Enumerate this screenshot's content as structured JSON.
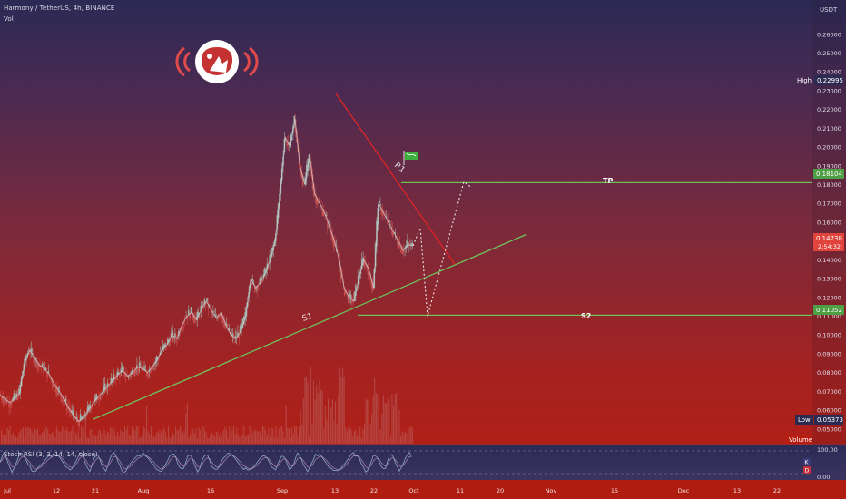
{
  "header": {
    "symbol_line": "Harmony / TetherUS, 4h, BINANCE",
    "vol_label": "Vol",
    "currency": "USDT"
  },
  "colors": {
    "bg_top": "#2b2a55",
    "bg_bottom": "#b81e10",
    "green_line": "#6fbf5a",
    "red_line": "#e02424",
    "candle_up": "#9fb0a8",
    "candle_down": "#c45050"
  },
  "chart_data": {
    "type": "line",
    "title": "",
    "y_axis": {
      "ticks": [
        "0.26000",
        "0.25000",
        "0.24000",
        "0.23000",
        "0.22000",
        "0.21000",
        "0.20000",
        "0.19000",
        "0.18000",
        "0.17000",
        "0.16000",
        "0.15000",
        "0.14000",
        "0.13000",
        "0.12000",
        "0.11000",
        "0.10000",
        "0.09000",
        "0.08000",
        "0.07000",
        "0.06000",
        "0.05000"
      ],
      "ylim": [
        0.0465,
        0.2715
      ]
    },
    "x_axis": {
      "tick_labels": [
        "Jul",
        "12",
        "21",
        "Aug",
        "16",
        "Sep",
        "13",
        "22",
        "Oct",
        "11",
        "20",
        "Nov",
        "15",
        "Dec",
        "13",
        "22"
      ]
    },
    "price_labels": {
      "high": {
        "label": "High",
        "value": "0.22995"
      },
      "tp": {
        "value": "0.18104"
      },
      "current": {
        "value": "0.14738",
        "countdown": "2:54:32"
      },
      "s2": {
        "value": "0.11052"
      },
      "low": {
        "label": "Low",
        "value": "0.05373"
      }
    },
    "levels": [
      {
        "name": "TP",
        "value": 0.18104
      },
      {
        "name": "S2",
        "value": 0.11052
      }
    ],
    "annotations": {
      "s1": "S1",
      "r1": "R1",
      "tp": "TP",
      "s2": "S2"
    },
    "close_series": [
      0.068,
      0.066,
      0.064,
      0.066,
      0.069,
      0.085,
      0.092,
      0.088,
      0.084,
      0.082,
      0.079,
      0.074,
      0.07,
      0.066,
      0.061,
      0.057,
      0.054,
      0.056,
      0.06,
      0.064,
      0.067,
      0.07,
      0.073,
      0.076,
      0.079,
      0.081,
      0.078,
      0.08,
      0.083,
      0.082,
      0.08,
      0.083,
      0.087,
      0.092,
      0.095,
      0.1,
      0.098,
      0.105,
      0.11,
      0.112,
      0.108,
      0.114,
      0.118,
      0.113,
      0.109,
      0.112,
      0.105,
      0.1,
      0.098,
      0.102,
      0.11,
      0.13,
      0.125,
      0.128,
      0.133,
      0.14,
      0.15,
      0.175,
      0.205,
      0.2,
      0.215,
      0.19,
      0.18,
      0.195,
      0.175,
      0.17,
      0.165,
      0.158,
      0.15,
      0.14,
      0.125,
      0.12,
      0.118,
      0.13,
      0.14,
      0.135,
      0.125,
      0.17,
      0.165,
      0.16,
      0.155,
      0.15,
      0.145,
      0.148,
      0.1474
    ],
    "volume_label": "Volume",
    "oscillator": {
      "label": "Stoch RSI (3, 3, 14, 14, close)",
      "ticks": [
        "100.00",
        "0.00"
      ],
      "k_label": "K",
      "d_label": "D"
    }
  }
}
